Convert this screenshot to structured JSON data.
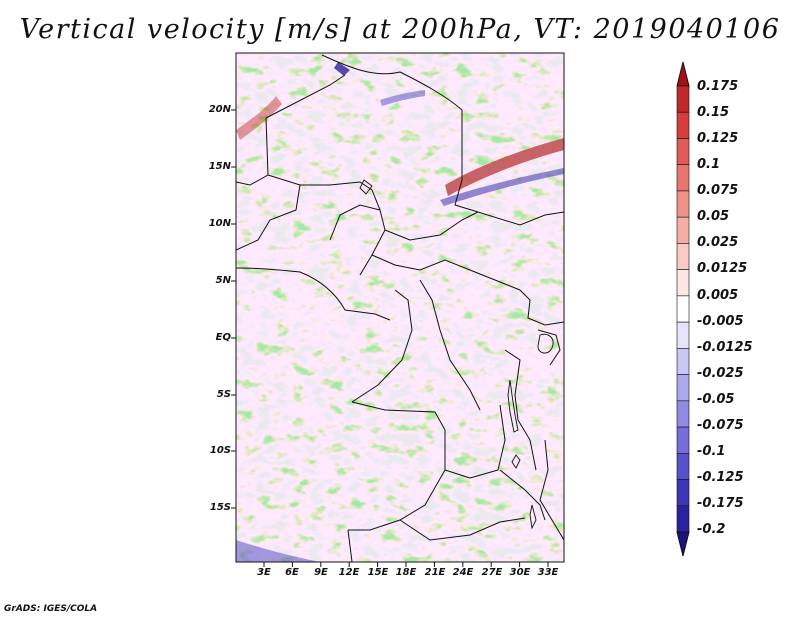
{
  "title": "Vertical velocity [m/s] at 200hPa, VT: 2019040106",
  "credit": "GrADS: IGES/COLA",
  "latitude_labels": [
    "20N",
    "15N",
    "10N",
    "5N",
    "EQ",
    "5S",
    "10S",
    "15S"
  ],
  "longitude_labels": [
    "3E",
    "6E",
    "9E",
    "12E",
    "15E",
    "18E",
    "21E",
    "24E",
    "27E",
    "30E",
    "33E"
  ],
  "colorbar": {
    "labels": [
      "0.175",
      "0.15",
      "0.125",
      "0.1",
      "0.075",
      "0.05",
      "0.025",
      "0.0125",
      "0.005",
      "-0.005",
      "-0.0125",
      "-0.025",
      "-0.05",
      "-0.075",
      "-0.1",
      "-0.125",
      "-0.175",
      "-0.2"
    ],
    "colors": [
      "#a50f15",
      "#c0282a",
      "#d63e3e",
      "#e15a57",
      "#e8766f",
      "#ef928a",
      "#f4aea5",
      "#f8cac3",
      "#fce6e2",
      "#ffffff",
      "#e5e3fb",
      "#cac6f4",
      "#ada8ec",
      "#918ae3",
      "#756dd9",
      "#5851cd",
      "#3d36b8",
      "#2a229e",
      "#1a1482"
    ]
  },
  "colors": {
    "positive": "#e46a62",
    "negative": "#7068dc",
    "border": "#111111"
  }
}
